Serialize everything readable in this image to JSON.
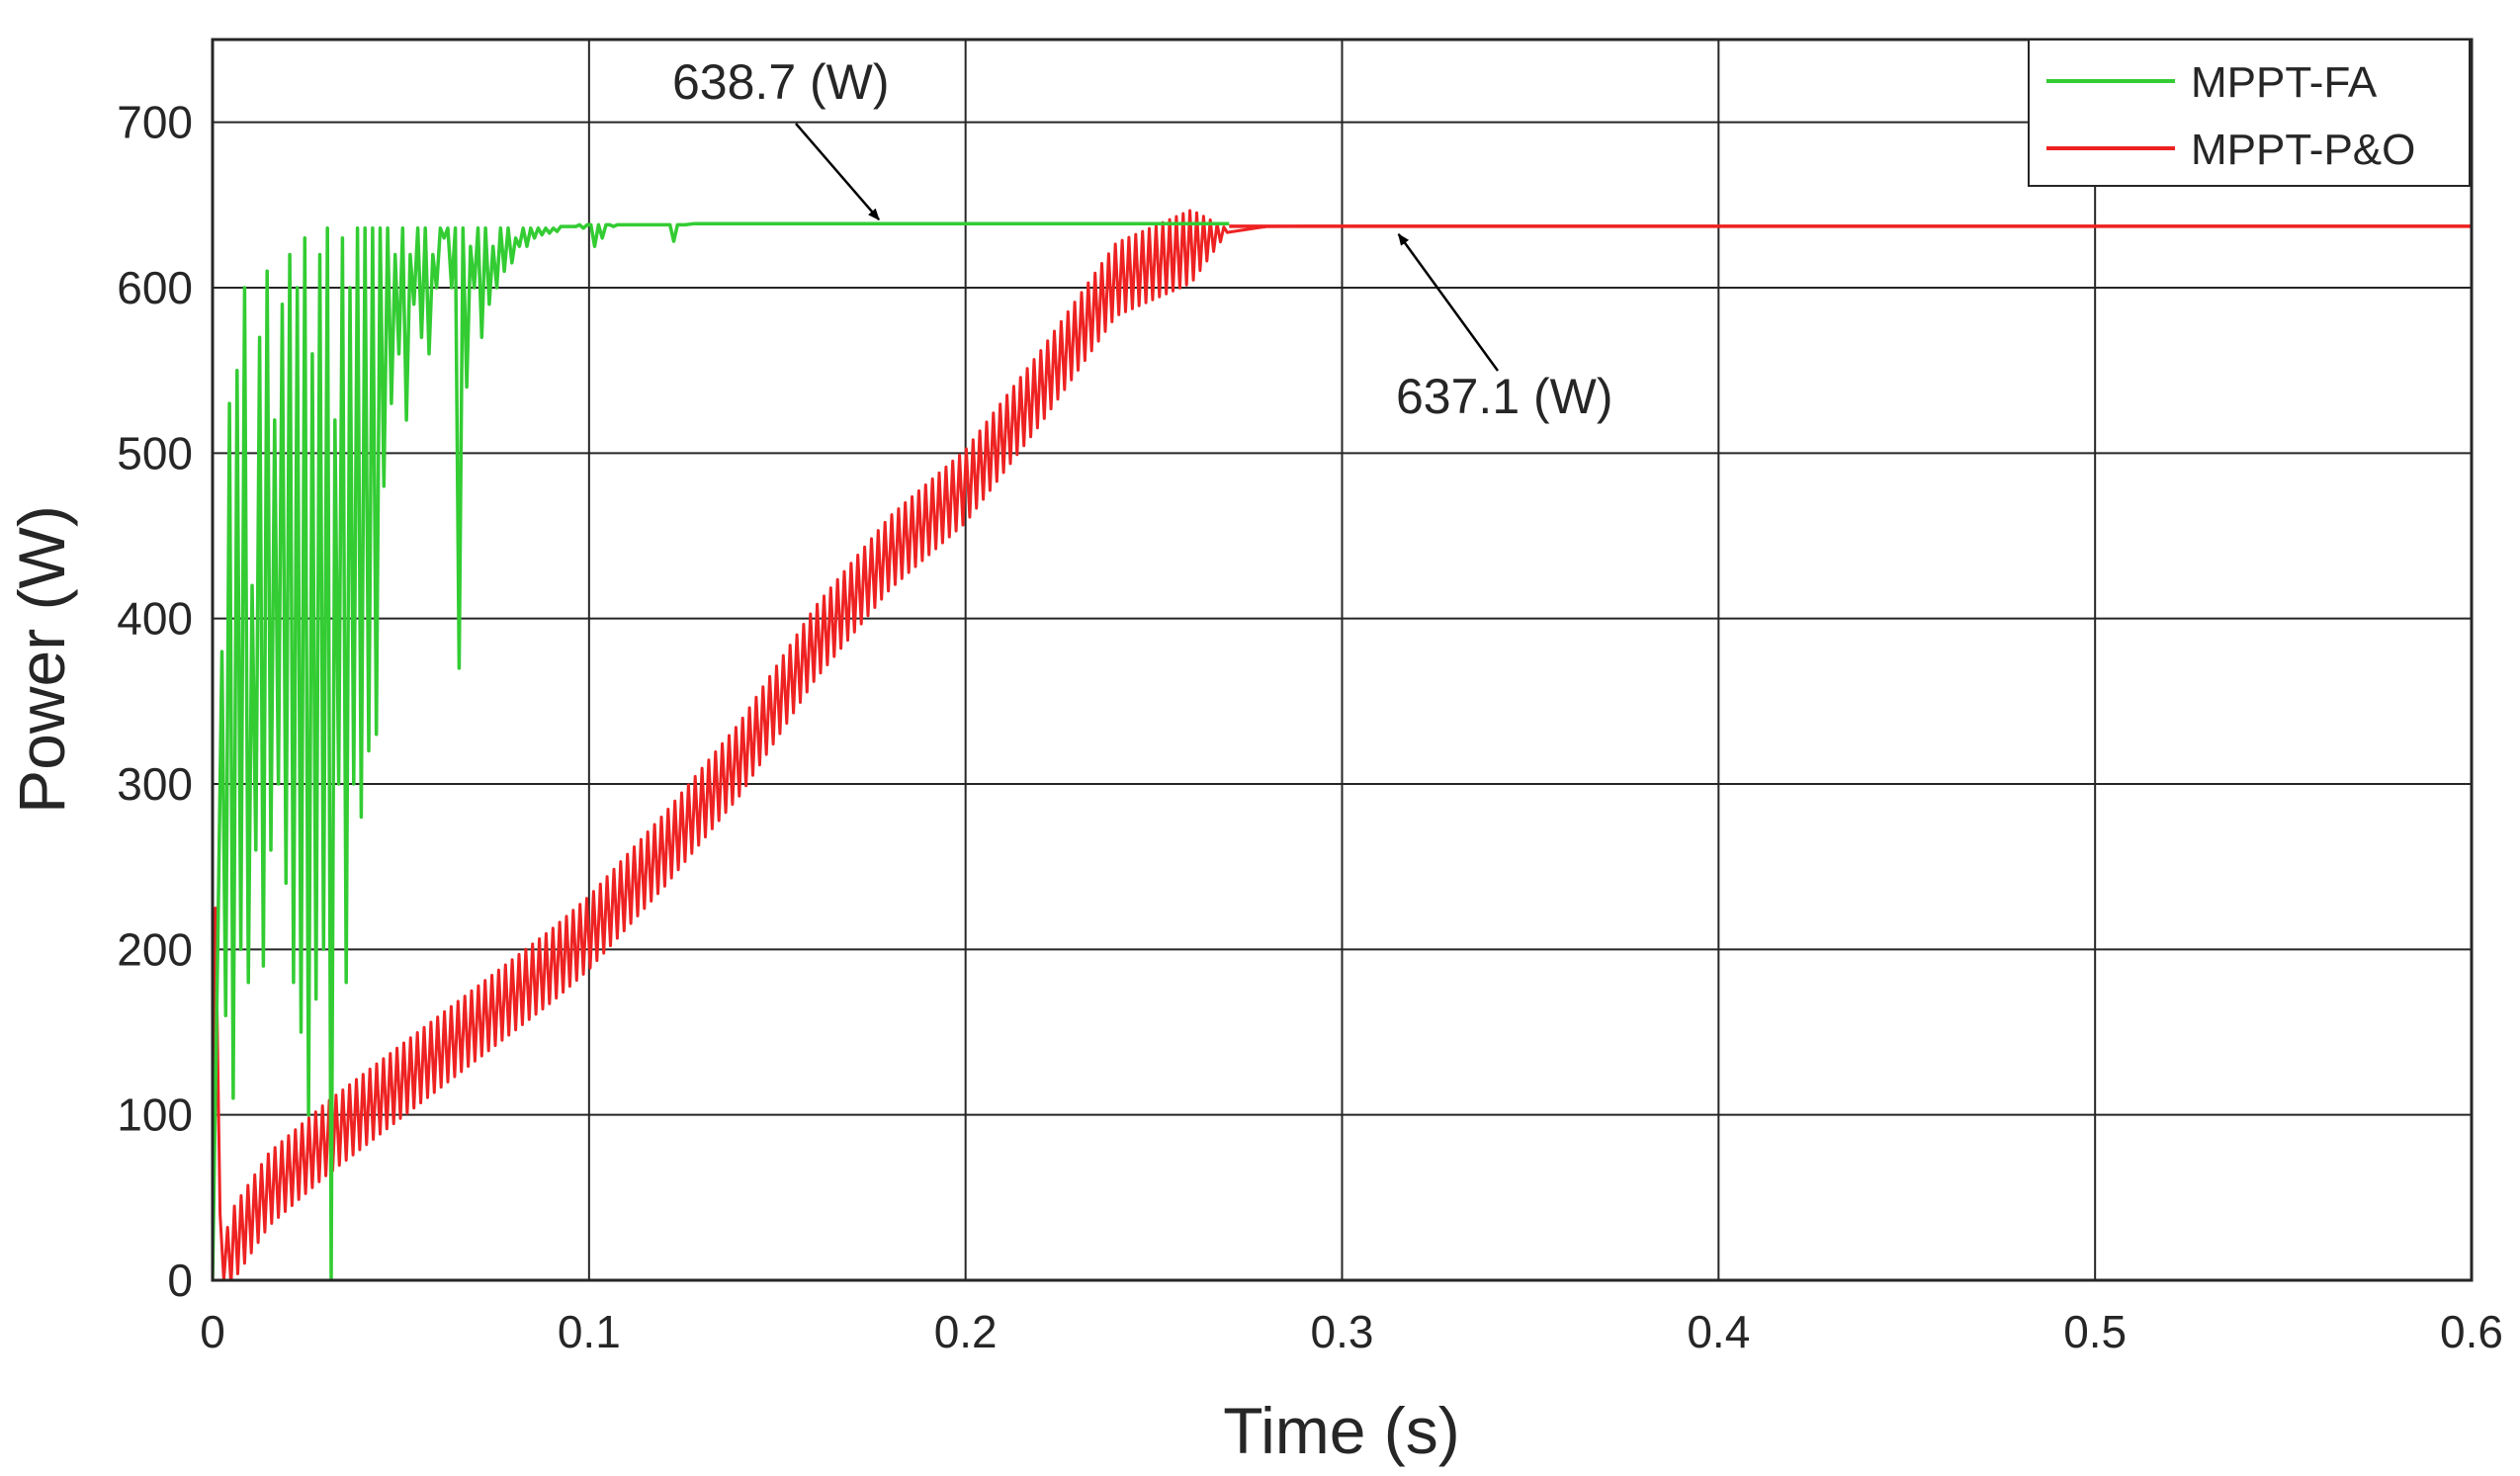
{
  "chart_data": {
    "type": "line",
    "title": "",
    "xlabel": "Time (s)",
    "ylabel": "Power (W)",
    "xlim": [
      0,
      0.6
    ],
    "ylim": [
      0,
      750
    ],
    "grid": true,
    "legend_position": "top-right",
    "x_ticks": [
      0,
      0.1,
      0.2,
      0.3,
      0.4,
      0.5,
      0.6
    ],
    "x_tick_labels": [
      "0",
      "0.1",
      "0.2",
      "0.3",
      "0.4",
      "0.5",
      "0.6"
    ],
    "y_ticks": [
      0,
      100,
      200,
      300,
      400,
      500,
      600,
      700
    ],
    "y_tick_labels": [
      "0",
      "100",
      "200",
      "300",
      "400",
      "500",
      "600",
      "700"
    ],
    "series": [
      {
        "name": "MPPT-FA",
        "color": "#33cc33",
        "x": [
          0,
          0.0015,
          0.0025,
          0.0035,
          0.0045,
          0.0055,
          0.0065,
          0.0075,
          0.0085,
          0.0095,
          0.0105,
          0.0115,
          0.0125,
          0.0135,
          0.0145,
          0.0155,
          0.0165,
          0.0175,
          0.0185,
          0.0195,
          0.0205,
          0.0215,
          0.0225,
          0.0235,
          0.0245,
          0.0255,
          0.0265,
          0.0275,
          0.0285,
          0.0295,
          0.0305,
          0.0315,
          0.0325,
          0.0335,
          0.0345,
          0.0355,
          0.0365,
          0.0375,
          0.0385,
          0.0395,
          0.0405,
          0.0415,
          0.0425,
          0.0435,
          0.0445,
          0.0455,
          0.0465,
          0.0475,
          0.0485,
          0.0495,
          0.0505,
          0.0515,
          0.0525,
          0.0535,
          0.0545,
          0.0555,
          0.0565,
          0.0575,
          0.0585,
          0.0595,
          0.0605,
          0.0615,
          0.0625,
          0.0635,
          0.0645,
          0.0655,
          0.0665,
          0.0675,
          0.0685,
          0.0695,
          0.0705,
          0.0715,
          0.0725,
          0.0735,
          0.0745,
          0.0755,
          0.0765,
          0.0775,
          0.0785,
          0.0795,
          0.0805,
          0.0815,
          0.0825,
          0.0835,
          0.0845,
          0.0855,
          0.0865,
          0.0875,
          0.0885,
          0.0895,
          0.0905,
          0.0915,
          0.0925,
          0.0935,
          0.0945,
          0.0955,
          0.0965,
          0.0975,
          0.0985,
          0.0995,
          0.1005,
          0.1015,
          0.1025,
          0.1035,
          0.1045,
          0.1055,
          0.1065,
          0.1075,
          0.1085,
          0.1095,
          0.1105,
          0.1115,
          0.1125,
          0.1135,
          0.1145,
          0.1155,
          0.1165,
          0.1175,
          0.1185,
          0.1195,
          0.1205,
          0.1215,
          0.1225,
          0.1235,
          0.1245,
          0.1255,
          0.128,
          0.15,
          0.2,
          0.25,
          0.27
        ],
        "y": [
          0,
          220,
          380,
          160,
          530,
          110,
          550,
          200,
          600,
          180,
          420,
          260,
          570,
          190,
          610,
          260,
          520,
          300,
          590,
          240,
          620,
          180,
          600,
          150,
          630,
          100,
          560,
          170,
          620,
          200,
          636,
          0,
          520,
          300,
          630,
          180,
          600,
          300,
          636,
          280,
          636,
          320,
          636,
          330,
          636,
          480,
          636,
          530,
          620,
          560,
          636,
          520,
          620,
          590,
          636,
          570,
          636,
          560,
          620,
          600,
          636,
          630,
          636,
          600,
          636,
          370,
          636,
          540,
          625,
          600,
          636,
          570,
          636,
          590,
          625,
          600,
          636,
          610,
          636,
          615,
          630,
          625,
          636,
          625,
          636,
          630,
          636,
          632,
          636,
          633,
          636,
          634,
          637,
          637,
          637,
          637,
          637,
          638,
          636,
          638,
          638,
          625,
          638,
          630,
          638,
          638,
          637,
          638,
          638,
          638,
          638,
          638,
          638,
          638,
          638,
          638,
          638,
          638,
          638,
          638,
          638,
          638,
          628,
          638,
          638,
          638,
          638.7,
          638.7,
          638.7,
          638.7,
          638.7
        ]
      },
      {
        "name": "MPPT-P&O",
        "color": "#ee2222",
        "x": [
          0,
          0.0008,
          0.002,
          0.003,
          0.005,
          0.015,
          0.03,
          0.05,
          0.07,
          0.09,
          0.1,
          0.12,
          0.14,
          0.16,
          0.18,
          0.2,
          0.22,
          0.24,
          0.26,
          0.265,
          0.27,
          0.28,
          0.29,
          0.3,
          0.35,
          0.4,
          0.5,
          0.6
        ],
        "y": [
          0,
          225,
          40,
          0,
          20,
          55,
          85,
          120,
          155,
          190,
          210,
          260,
          315,
          385,
          440,
          480,
          540,
          605,
          625,
          630,
          635,
          637,
          637.1,
          637.1,
          637.1,
          637.1,
          637.1,
          637.1
        ]
      }
    ],
    "annotations": [
      {
        "text": "638.7 (W)",
        "target_x": 0.177,
        "target_y": 638.7
      },
      {
        "text": "637.1 (W)",
        "target_x": 0.315,
        "target_y": 637.1
      }
    ]
  }
}
